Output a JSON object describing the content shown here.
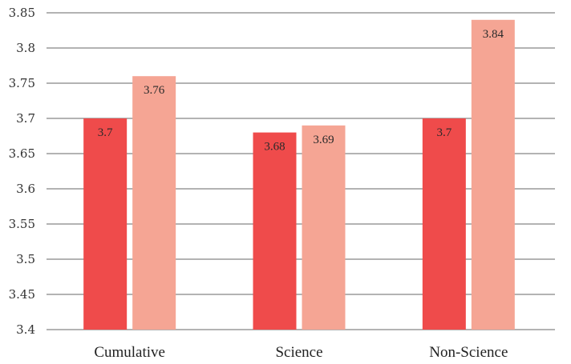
{
  "chart_data": {
    "type": "bar",
    "categories": [
      "Cumulative",
      "Science",
      "Non-Science"
    ],
    "series": [
      {
        "values": [
          3.7,
          3.68,
          3.7
        ],
        "labels": [
          "3.7",
          "3.68",
          "3.7"
        ],
        "color": "#ef4b4b"
      },
      {
        "values": [
          3.76,
          3.69,
          3.84
        ],
        "labels": [
          "3.76",
          "3.69",
          "3.84"
        ],
        "color": "#f5a594"
      }
    ],
    "ylim": [
      3.4,
      3.85
    ],
    "yticks": [
      3.4,
      3.45,
      3.5,
      3.55,
      3.6,
      3.65,
      3.7,
      3.75,
      3.8,
      3.85
    ],
    "ytick_labels": [
      "3.4",
      "3.45",
      "3.5",
      "3.55",
      "3.6",
      "3.65",
      "3.7",
      "3.75",
      "3.8",
      "3.85"
    ],
    "grid": true,
    "gridline_color": "#b3b3b3",
    "title": "",
    "xlabel": "",
    "ylabel": ""
  }
}
